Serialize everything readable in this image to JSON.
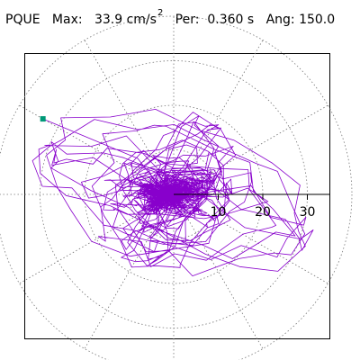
{
  "header": {
    "station": "PQUE",
    "max_label": "Max:",
    "max_value": "33.9",
    "unit": "cm/s",
    "unit_exp": "2",
    "period_label": "Per:",
    "period_value": "0.360 s",
    "angle_label": "Ang:",
    "angle_value": "150.0"
  },
  "chart_data": {
    "type": "line",
    "title": "PQUE  Max: 33.9 cm/s2  Per: 0.360 s  Ang: 150.0",
    "polar_radial_ticks": [
      "10",
      "20",
      "30"
    ],
    "radial_range": [
      0,
      40
    ],
    "rings": [
      10,
      20,
      30,
      40
    ],
    "spokes_deg": [
      0,
      30,
      60,
      90,
      120,
      150,
      180,
      210,
      240,
      270,
      300,
      330
    ],
    "grid": true,
    "grid_style": "dotted",
    "trace_color": "#8800cc",
    "end_marker_color": "#009977",
    "end_marker_polar": {
      "r": 33.9,
      "angle_deg": 150.0
    }
  }
}
